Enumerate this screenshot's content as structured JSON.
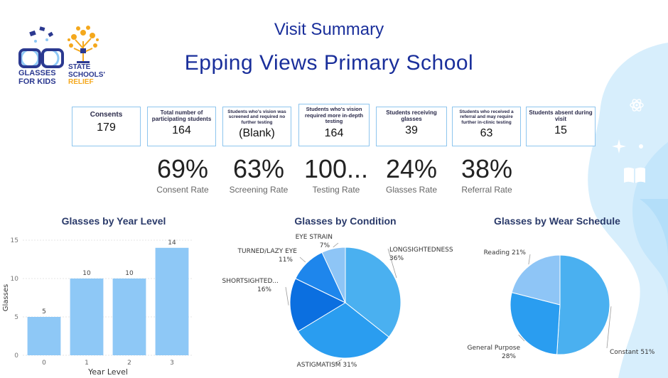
{
  "header": {
    "title": "Visit Summary",
    "school": "Epping Views Primary School",
    "logo_left": "GLASSES FOR KIDS",
    "logo_right_line1": "STATE",
    "logo_right_line2": "SCHOOLS'",
    "logo_right_line3": "RELIEF"
  },
  "cards": [
    {
      "label": "Consents",
      "value": "179"
    },
    {
      "label": "Total number of participating students",
      "value": "164"
    },
    {
      "label": "Students who's vision was screened and required no further testing",
      "value": "(Blank)"
    },
    {
      "label": "Students who's vision required more in-depth testing",
      "value": "164"
    },
    {
      "label": "Students receiving glasses",
      "value": "39"
    },
    {
      "label": "Students who received a referral and may require further in-clinic testing",
      "value": "63"
    },
    {
      "label": "Students absent during visit",
      "value": "15"
    }
  ],
  "kpis": [
    {
      "value": "69%",
      "label": "Consent Rate"
    },
    {
      "value": "63%",
      "label": "Screening Rate"
    },
    {
      "value": "100...",
      "label": "Testing Rate"
    },
    {
      "value": "24%",
      "label": "Glasses Rate"
    },
    {
      "value": "38%",
      "label": "Referral Rate"
    }
  ],
  "colors": {
    "bar": "#8ec8f6",
    "pie_light": "#8ec5f6",
    "pie_mid": "#4ab0f0",
    "pie_blue": "#2a9df0",
    "pie_deep": "#1e86ec",
    "pie_dark": "#0b6fe0",
    "title": "#1a2f9b"
  },
  "chart_data": [
    {
      "type": "bar",
      "title": "Glasses by Year Level",
      "xlabel": "Year Level",
      "ylabel": "Glasses",
      "categories": [
        "0",
        "1",
        "2",
        "3"
      ],
      "values": [
        5,
        10,
        10,
        14
      ],
      "yticks": [
        "0",
        "5",
        "10",
        "15"
      ],
      "ylim": [
        0,
        15
      ],
      "grid": true
    },
    {
      "type": "pie",
      "title": "Glasses by Condition",
      "slices": [
        {
          "label": "LONGSIGHTEDNESS",
          "value": 36,
          "pct": "36%"
        },
        {
          "label": "ASTIGMATISM",
          "value": 31,
          "pct": "31%"
        },
        {
          "label": "SHORTSIGHTED...",
          "value": 16,
          "pct": "16%"
        },
        {
          "label": "TURNED/LAZY EYE",
          "value": 11,
          "pct": "11%"
        },
        {
          "label": "EYE STRAIN",
          "value": 7,
          "pct": "7%"
        }
      ]
    },
    {
      "type": "pie",
      "title": "Glasses by Wear Schedule",
      "slices": [
        {
          "label": "Constant",
          "value": 51,
          "pct": "51%"
        },
        {
          "label": "General Purpose",
          "value": 28,
          "pct": "28%"
        },
        {
          "label": "Reading",
          "value": 21,
          "pct": "21%"
        }
      ]
    }
  ]
}
